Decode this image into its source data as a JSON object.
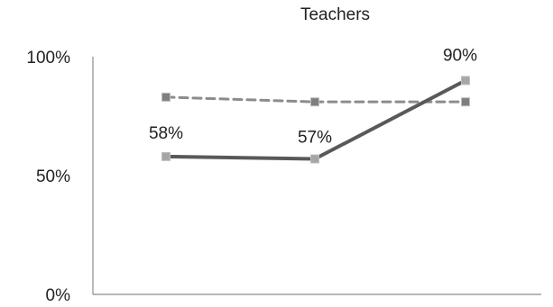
{
  "chart_data": {
    "type": "line",
    "title": "Teachers",
    "xlabel": "",
    "ylabel": "",
    "ylim": [
      0,
      1
    ],
    "ytick_labels": [
      "0%",
      "50%",
      "100%"
    ],
    "ytick_values": [
      0,
      0.5,
      1.0
    ],
    "categories": [
      "",
      "",
      ""
    ],
    "series": [
      {
        "values": [
          0.58,
          0.57,
          0.9
        ],
        "data_labels": [
          "58%",
          "57%",
          "90%"
        ],
        "style": "solid",
        "color": "#595959",
        "marker_color": "#a6a6a6"
      },
      {
        "values": [
          0.83,
          0.81,
          0.81
        ],
        "style": "dashed",
        "color": "#8c8c8c",
        "marker_color": "#7f7f7f"
      }
    ],
    "grid": false,
    "legend": "none"
  }
}
